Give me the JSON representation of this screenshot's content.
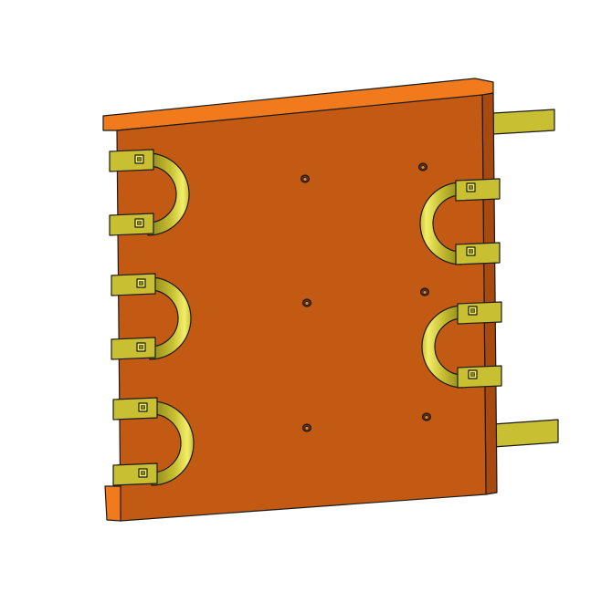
{
  "scene": {
    "background": "#ffffff",
    "plate_face_color": "#c25a14",
    "plate_top_color": "#f07a1c",
    "plate_side_color": "#a84a10",
    "bracket_color": "#c8c032",
    "bracket_highlight_color": "#f2ee6a",
    "bracket_shadow_color": "#8a8418",
    "outline_color": "#1a1a1a",
    "components": [
      {
        "name": "base-plate"
      },
      {
        "name": "left-u-bracket",
        "count": 3
      },
      {
        "name": "right-u-bracket",
        "count": 2
      },
      {
        "name": "side-bar",
        "count": 2
      },
      {
        "name": "mounting-hole",
        "count": 6
      }
    ]
  }
}
